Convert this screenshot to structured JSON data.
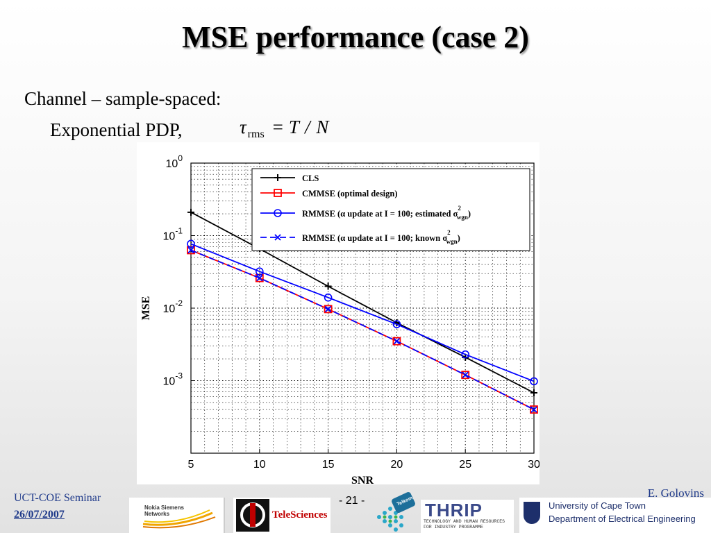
{
  "slide": {
    "title": "MSE performance (case 2)",
    "bullet1": "Channel – sample-spaced:",
    "bullet2": "Exponential PDP,",
    "formula": {
      "symbol": "τ",
      "subscript": "rms",
      "equals": "=",
      "rhs": "T / N"
    }
  },
  "footer": {
    "seminar": "UCT-COE Seminar",
    "date": "26/07/2007",
    "page": "- 21 -",
    "author": "E. Golovins"
  },
  "logos": {
    "nokia": "Nokia Siemens Networks",
    "telesciences": "TeleSciences",
    "telkom": "Telkom",
    "thrip": "THRIP",
    "thrip_sub": "TECHNOLOGY AND HUMAN RESOURCES FOR INDUSTRY PROGRAMME",
    "uct_line1": "University of Cape Town",
    "uct_line2": "Department of Electrical Engineering"
  },
  "chart_data": {
    "type": "line",
    "xlabel": "SNR",
    "ylabel": "MSE",
    "y_scale": "log",
    "xlim": [
      5,
      30
    ],
    "ylim": [
      0.0001,
      1
    ],
    "x_ticks": [
      5,
      10,
      15,
      20,
      25,
      30
    ],
    "y_ticks": [
      {
        "value": 0.001,
        "base": "10",
        "exp": "-3"
      },
      {
        "value": 0.01,
        "base": "10",
        "exp": "-2"
      },
      {
        "value": 0.1,
        "base": "10",
        "exp": "-1"
      },
      {
        "value": 1,
        "base": "10",
        "exp": "0"
      }
    ],
    "grid": true,
    "legend_position": "top-right",
    "x": [
      5,
      10,
      15,
      20,
      25,
      30
    ],
    "series": [
      {
        "name": "CLS",
        "color": "#000000",
        "marker": "plus",
        "dash": "solid",
        "values": [
          0.21,
          0.066,
          0.02,
          0.0063,
          0.0021,
          0.00068
        ]
      },
      {
        "name": "CMMSE (optimal design)",
        "color": "#ff0000",
        "marker": "square",
        "dash": "solid",
        "values": [
          0.063,
          0.026,
          0.0097,
          0.0035,
          0.0012,
          0.0004
        ]
      },
      {
        "name": "RMMSE (α update at I = 100; estimated σ",
        "sup": "2",
        "sub": "wgn",
        "tail": ")",
        "color": "#0000ff",
        "marker": "circle",
        "dash": "solid",
        "values": [
          0.077,
          0.032,
          0.014,
          0.006,
          0.0023,
          0.00098
        ]
      },
      {
        "name": "RMMSE (α update at I = 100; known σ",
        "sup": "2",
        "sub": "wgn",
        "tail": ")",
        "color": "#0000ff",
        "marker": "x",
        "dash": "dashed",
        "values": [
          0.063,
          0.026,
          0.0097,
          0.0035,
          0.0012,
          0.0004
        ]
      }
    ]
  }
}
